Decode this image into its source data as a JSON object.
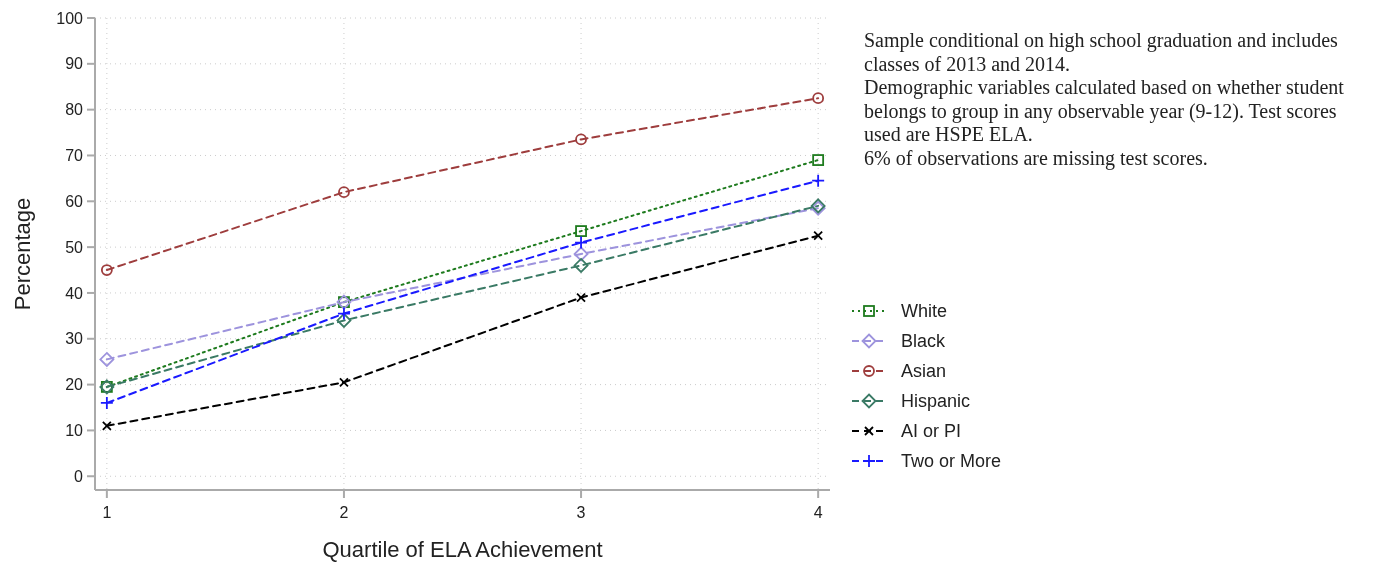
{
  "chart_data": {
    "type": "line",
    "xlabel": "Quartile of ELA Achievement",
    "ylabel": "Percentage",
    "x": [
      1,
      2,
      3,
      4
    ],
    "xlim": [
      0.95,
      4.05
    ],
    "xticks": [
      1,
      2,
      3,
      4
    ],
    "ylim": [
      -3,
      100
    ],
    "yticks": [
      0,
      10,
      20,
      30,
      40,
      50,
      60,
      70,
      80,
      90,
      100
    ],
    "grid": true,
    "legend": "right",
    "annotations": [
      "Sample conditional on high school graduation and includes classes of 2013 and 2014.",
      "Demographic variables calculated based on whether student belongs to group in any observable year (9-12). Test scores used are HSPE ELA.",
      "6% of observations are missing test scores."
    ],
    "series": [
      {
        "name": "White",
        "color": "#1e7b1e",
        "marker": "square",
        "line_style": "dotted",
        "values": [
          19.5,
          38,
          53.5,
          69
        ]
      },
      {
        "name": "Black",
        "color": "#9d93dd",
        "marker": "diamond",
        "line_style": "dashed",
        "values": [
          25.5,
          38,
          48.5,
          58.5
        ]
      },
      {
        "name": "Asian",
        "color": "#9e3d3d",
        "marker": "circle",
        "line_style": "dashed",
        "values": [
          45,
          62,
          73.5,
          82.5
        ]
      },
      {
        "name": "Hispanic",
        "color": "#3a7a65",
        "marker": "diamond",
        "line_style": "dashed",
        "values": [
          19.5,
          34,
          46,
          59
        ]
      },
      {
        "name": "AI or PI",
        "color": "#000000",
        "marker": "cross",
        "line_style": "dashed",
        "values": [
          11,
          20.5,
          39,
          52.5
        ]
      },
      {
        "name": "Two or More",
        "color": "#1a1aff",
        "marker": "plus",
        "line_style": "dashed",
        "values": [
          16,
          35.5,
          51,
          64.5
        ]
      }
    ]
  }
}
